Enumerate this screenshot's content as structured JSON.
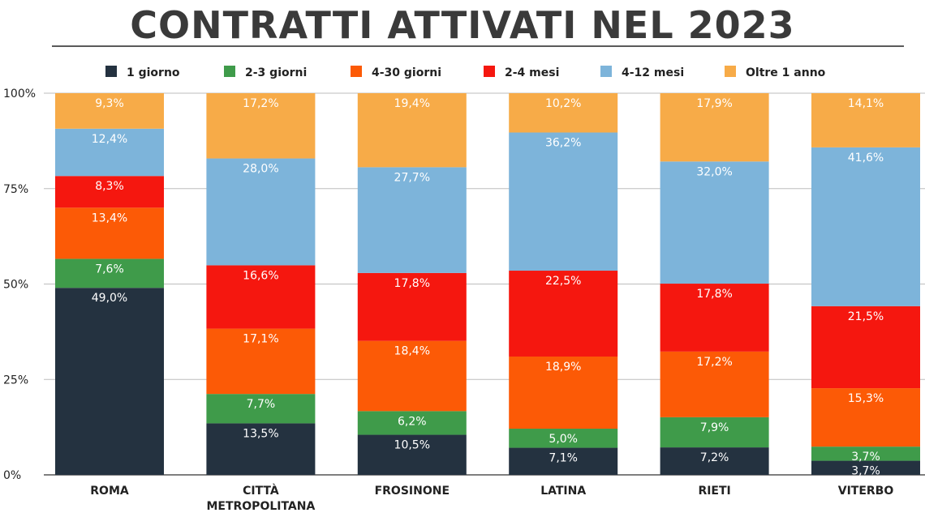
{
  "chart_data": {
    "type": "bar",
    "stacked": true,
    "title": "CONTRATTI ATTIVATI NEL 2023",
    "categories": [
      {
        "lines": [
          "ROMA"
        ]
      },
      {
        "lines": [
          "CITTÀ",
          "METROPOLITANA"
        ]
      },
      {
        "lines": [
          "FROSINONE"
        ]
      },
      {
        "lines": [
          "LATINA"
        ]
      },
      {
        "lines": [
          "RIETI"
        ]
      },
      {
        "lines": [
          "VITERBO"
        ]
      }
    ],
    "y_ticks": [
      0,
      25,
      50,
      75,
      100
    ],
    "y_tick_labels": [
      "0%",
      "25%",
      "50%",
      "75%",
      "100%"
    ],
    "ylim": [
      0,
      100
    ],
    "grid": true,
    "legend_position": "top",
    "series": [
      {
        "name": "1 giorno",
        "color": "#243240",
        "values": [
          49.0,
          13.5,
          10.5,
          7.1,
          7.2,
          3.7
        ],
        "labels": [
          "49,0%",
          "13,5%",
          "10,5%",
          "7,1%",
          "7,2%",
          "3,7%"
        ]
      },
      {
        "name": "2-3 giorni",
        "color": "#3f9b4a",
        "values": [
          7.6,
          7.7,
          6.2,
          5.0,
          7.9,
          3.7
        ],
        "labels": [
          "7,6%",
          "7,7%",
          "6,2%",
          "5,0%",
          "7,9%",
          "3,7%"
        ]
      },
      {
        "name": "4-30 giorni",
        "color": "#fc5a06",
        "values": [
          13.4,
          17.1,
          18.4,
          18.9,
          17.2,
          15.3
        ],
        "labels": [
          "13,4%",
          "17,1%",
          "18,4%",
          "18,9%",
          "17,2%",
          "15,3%"
        ]
      },
      {
        "name": "2-4 mesi",
        "color": "#f5170f",
        "values": [
          8.3,
          16.6,
          17.8,
          22.5,
          17.8,
          21.5
        ],
        "labels": [
          "8,3%",
          "16,6%",
          "17,8%",
          "22,5%",
          "17,8%",
          "21,5%"
        ]
      },
      {
        "name": "4-12 mesi",
        "color": "#7db4da",
        "values": [
          12.4,
          28.0,
          27.7,
          36.2,
          32.0,
          41.6
        ],
        "labels": [
          "12,4%",
          "28,0%",
          "27,7%",
          "36,2%",
          "32,0%",
          "41,6%"
        ]
      },
      {
        "name": "Oltre 1 anno",
        "color": "#f7ab48",
        "values": [
          9.3,
          17.2,
          19.4,
          10.2,
          17.9,
          14.1
        ],
        "labels": [
          "9,3%",
          "17,2%",
          "19,4%",
          "10,2%",
          "17,9%",
          "14,1%"
        ]
      }
    ]
  }
}
